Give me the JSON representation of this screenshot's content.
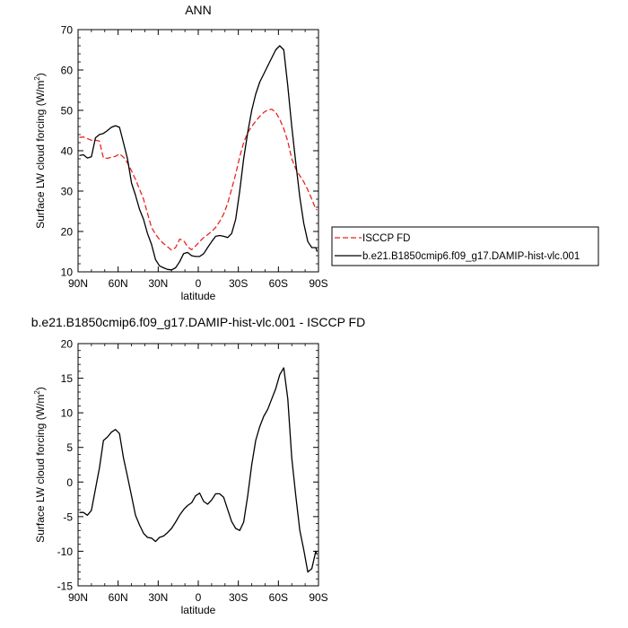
{
  "chart_data": [
    {
      "type": "line",
      "title": "ANN",
      "xlabel": "latitude",
      "ylabel": "Surface LW cloud forcing (W/m",
      "ylabel_sup": "2",
      "ylabel_end": ")",
      "xlim": [
        90,
        -90
      ],
      "ylim": [
        10,
        70
      ],
      "xticks": [
        {
          "value": 90,
          "label": "90N"
        },
        {
          "value": 60,
          "label": "60N"
        },
        {
          "value": 30,
          "label": "30N"
        },
        {
          "value": 0,
          "label": "0"
        },
        {
          "value": -30,
          "label": "30S"
        },
        {
          "value": -60,
          "label": "60S"
        },
        {
          "value": -90,
          "label": "90S"
        }
      ],
      "yticks": [
        10,
        20,
        30,
        40,
        50,
        60,
        70
      ],
      "legend": "right",
      "series": [
        {
          "name": "ISCCP FD",
          "color": "#e8241f",
          "dash": true,
          "x": [
            89,
            86,
            83,
            80,
            77,
            74,
            71,
            68,
            65,
            62,
            59,
            56,
            53,
            50,
            47,
            44,
            41,
            38,
            35,
            32,
            29,
            26,
            23,
            20,
            17,
            14,
            11,
            8,
            5,
            2,
            -1,
            -4,
            -7,
            -10,
            -13,
            -16,
            -19,
            -22,
            -25,
            -28,
            -31,
            -34,
            -37,
            -40,
            -43,
            -46,
            -49,
            -52,
            -55,
            -58,
            -61,
            -64,
            -67,
            -70,
            -73,
            -76,
            -79,
            -82,
            -85,
            -88,
            -89
          ],
          "values": [
            43.3,
            43.4,
            43.0,
            42.6,
            42.6,
            42.4,
            38.2,
            38.1,
            38.4,
            38.6,
            39.2,
            38.4,
            37.0,
            35.0,
            32.9,
            30.5,
            28.0,
            24.5,
            21.0,
            19.3,
            18.0,
            17.0,
            16.2,
            15.4,
            16.0,
            18.1,
            17.8,
            16.2,
            15.5,
            16.4,
            17.5,
            18.5,
            19.2,
            20.0,
            21.0,
            22.5,
            24.3,
            27.0,
            30.5,
            34.2,
            38.5,
            42.0,
            44.5,
            46.0,
            47.3,
            48.5,
            49.5,
            50.1,
            50.3,
            49.5,
            47.8,
            45.5,
            42.3,
            38.0,
            35.5,
            33.8,
            32.3,
            30.3,
            28.0,
            25.5,
            25.4
          ]
        },
        {
          "name": "b.e21.B1850cmip6.f09_g17.DAMIP-hist-vlc.001",
          "color": "#000000",
          "dash": false,
          "x": [
            89,
            86,
            83,
            80,
            77,
            74,
            71,
            68,
            65,
            62,
            59,
            56,
            53,
            50,
            47,
            44,
            41,
            38,
            35,
            32,
            29,
            26,
            23,
            20,
            17,
            14,
            11,
            8,
            5,
            2,
            -1,
            -4,
            -7,
            -10,
            -13,
            -16,
            -19,
            -22,
            -25,
            -28,
            -31,
            -34,
            -37,
            -40,
            -43,
            -46,
            -49,
            -52,
            -55,
            -58,
            -61,
            -64,
            -67,
            -70,
            -73,
            -76,
            -79,
            -82,
            -85,
            -88,
            -89
          ],
          "values": [
            38.8,
            39.0,
            38.2,
            38.5,
            43.2,
            44.0,
            44.3,
            45.0,
            45.8,
            46.2,
            45.8,
            42.0,
            38.0,
            32.0,
            29.0,
            25.5,
            23.0,
            19.5,
            16.8,
            13.0,
            11.5,
            11.0,
            10.6,
            10.5,
            11.0,
            12.5,
            14.5,
            14.8,
            14.0,
            13.8,
            13.8,
            14.5,
            16.0,
            17.5,
            18.8,
            19.0,
            18.8,
            18.5,
            19.5,
            23.0,
            30.0,
            38.0,
            44.5,
            50.0,
            54.0,
            57.0,
            59.0,
            61.0,
            63.0,
            65.0,
            66.0,
            65.0,
            56.0,
            46.0,
            37.0,
            28.5,
            22.0,
            17.5,
            16.0,
            16.0,
            15.0
          ]
        }
      ]
    },
    {
      "type": "line",
      "title": "b.e21.B1850cmip6.f09_g17.DAMIP-hist-vlc.001 - ISCCP FD",
      "xlabel": "latitude",
      "ylabel": "Surface LW cloud forcing (W/m",
      "ylabel_sup": "2",
      "ylabel_end": ")",
      "xlim": [
        90,
        -90
      ],
      "ylim": [
        -15,
        20
      ],
      "xticks": [
        {
          "value": 90,
          "label": "90N"
        },
        {
          "value": 60,
          "label": "60N"
        },
        {
          "value": 30,
          "label": "30N"
        },
        {
          "value": 0,
          "label": "0"
        },
        {
          "value": -30,
          "label": "30S"
        },
        {
          "value": -60,
          "label": "60S"
        },
        {
          "value": -90,
          "label": "90S"
        }
      ],
      "yticks": [
        -15,
        -10,
        -5,
        0,
        5,
        10,
        15,
        20
      ],
      "series": [
        {
          "color": "#000000",
          "dash": false,
          "x": [
            89,
            86,
            83,
            80,
            77,
            74,
            71,
            68,
            65,
            62,
            59,
            56,
            53,
            50,
            47,
            44,
            41,
            38,
            35,
            32,
            29,
            26,
            23,
            20,
            17,
            14,
            11,
            8,
            5,
            2,
            -1,
            -4,
            -7,
            -10,
            -13,
            -16,
            -19,
            -22,
            -25,
            -28,
            -31,
            -34,
            -37,
            -40,
            -43,
            -46,
            -49,
            -52,
            -55,
            -58,
            -61,
            -64,
            -67,
            -70,
            -73,
            -76,
            -79,
            -82,
            -85,
            -88,
            -89
          ],
          "values": [
            -4.4,
            -4.4,
            -4.8,
            -4.1,
            -1.0,
            2.0,
            6.0,
            6.5,
            7.2,
            7.6,
            7.0,
            3.5,
            0.8,
            -2.0,
            -4.8,
            -6.2,
            -7.4,
            -8.0,
            -8.1,
            -8.6,
            -8.0,
            -7.8,
            -7.3,
            -6.7,
            -5.8,
            -4.8,
            -4.0,
            -3.4,
            -3.0,
            -2.0,
            -1.6,
            -2.8,
            -3.2,
            -2.6,
            -1.7,
            -1.7,
            -2.2,
            -4.0,
            -5.7,
            -6.7,
            -7.0,
            -5.8,
            -2.0,
            2.5,
            6.0,
            8.0,
            9.5,
            10.5,
            12.0,
            13.5,
            15.5,
            16.5,
            12.0,
            3.5,
            -2.0,
            -7.0,
            -9.8,
            -13.0,
            -12.5,
            -10.0,
            -10.5
          ]
        }
      ]
    }
  ]
}
